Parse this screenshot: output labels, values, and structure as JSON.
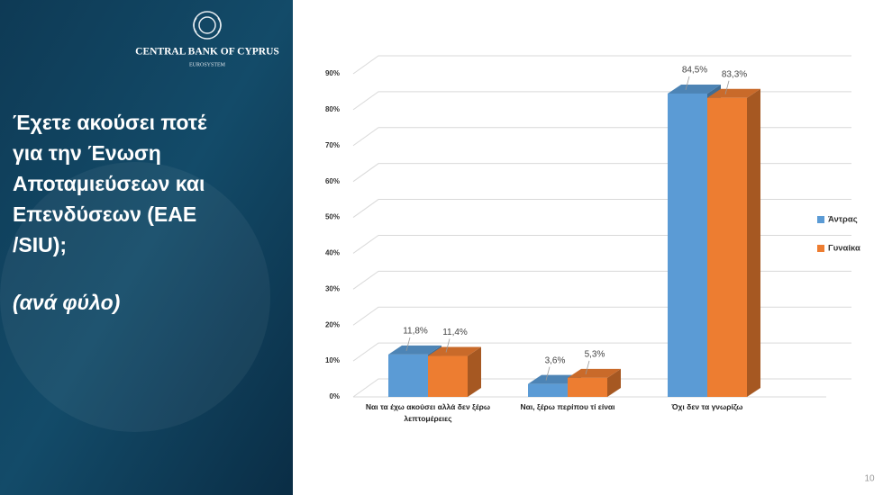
{
  "slide": {
    "bank_name": "CENTRAL BANK OF CYPRUS",
    "bank_sub": "EUROSYSTEM",
    "title_lines": [
      "Έχετε ακούσει ποτέ",
      "για την Ένωση",
      "Αποταμιεύσεων και",
      "Επενδύσεων (ΕΑΕ",
      "/SIU);"
    ],
    "subtitle": "(ανά φύλο)",
    "page_number": "10"
  },
  "chart_data": {
    "type": "bar3d",
    "categories": [
      "Ναι τα έχω ακούσει αλλά δεν ξέρω λεπτομέρειες",
      "Ναι, ξέρω περίπου τί είναι",
      "Όχι δεν τα γνωρίζω"
    ],
    "series": [
      {
        "name": "Άντρας",
        "color": "#5b9bd5",
        "values": [
          11.8,
          3.6,
          84.5
        ],
        "value_labels": [
          "11,8%",
          "3,6%",
          "84,5%"
        ]
      },
      {
        "name": "Γυναίκα",
        "color": "#ed7d31",
        "values": [
          11.4,
          5.3,
          83.3
        ],
        "value_labels": [
          "11,4%",
          "5,3%",
          "83,3%"
        ]
      }
    ],
    "ylim": [
      0,
      90
    ],
    "yticks": [
      {
        "value": 0,
        "label": "0%"
      },
      {
        "value": 10,
        "label": "10%"
      },
      {
        "value": 20,
        "label": "20%"
      },
      {
        "value": 30,
        "label": "30%"
      },
      {
        "value": 40,
        "label": "40%"
      },
      {
        "value": 50,
        "label": "50%"
      },
      {
        "value": 60,
        "label": "60%"
      },
      {
        "value": 70,
        "label": "70%"
      },
      {
        "value": 80,
        "label": "80%"
      },
      {
        "value": 90,
        "label": "90%"
      }
    ],
    "grid": true,
    "legend": "right"
  }
}
